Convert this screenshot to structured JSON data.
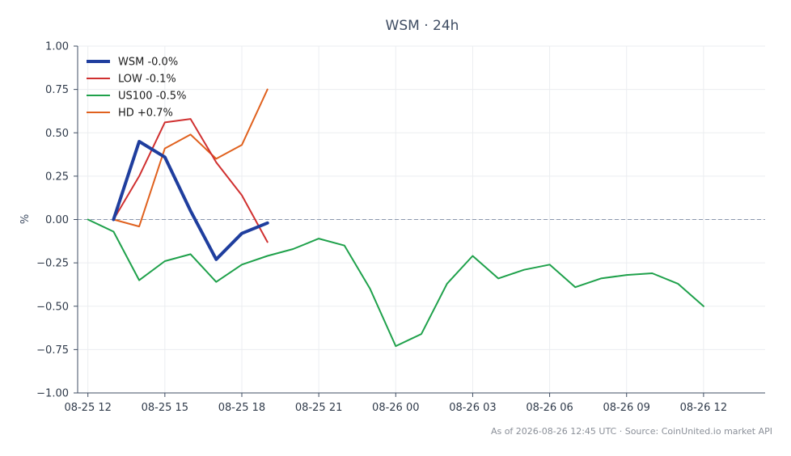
{
  "chart_data": {
    "type": "line",
    "title": "WSM · 24h",
    "ylabel": "%",
    "xlabel": "",
    "ylim": [
      -1.0,
      1.0
    ],
    "xlim": [
      -0.4,
      26.4
    ],
    "yticks": [
      1.0,
      0.75,
      0.5,
      0.25,
      0.0,
      -0.25,
      -0.5,
      -0.75,
      -1.0
    ],
    "ytick_labels": [
      "1.00",
      "0.75",
      "0.50",
      "0.25",
      "0.00",
      "−0.25",
      "−0.50",
      "−0.75",
      "−1.00"
    ],
    "xticks": [
      0,
      3,
      6,
      9,
      12,
      15,
      18,
      21,
      24
    ],
    "xtick_labels": [
      "08-25 12",
      "08-25 15",
      "08-25 18",
      "08-25 21",
      "08-26 00",
      "08-26 03",
      "08-26 06",
      "08-26 09",
      "08-26 12"
    ],
    "grid": true,
    "legend_position": "top-left",
    "zero_line": true,
    "series": [
      {
        "name": "WSM -0.0%",
        "color": "#1f3e9e",
        "x": [
          1,
          2,
          3,
          4,
          5,
          6,
          7
        ],
        "y": [
          0.0,
          0.45,
          0.36,
          0.05,
          -0.23,
          -0.08,
          -0.02
        ]
      },
      {
        "name": "LOW -0.1%",
        "color": "#d03030",
        "x": [
          1,
          2,
          3,
          4,
          5,
          6,
          7
        ],
        "y": [
          0.0,
          0.25,
          0.56,
          0.58,
          0.33,
          0.14,
          -0.13
        ]
      },
      {
        "name": "US100 -0.5%",
        "color": "#1fa14b",
        "x": [
          0,
          1,
          2,
          3,
          4,
          5,
          6,
          7,
          8,
          9,
          10,
          11,
          12,
          13,
          14,
          15,
          16,
          17,
          18,
          19,
          20,
          21,
          22,
          23,
          24
        ],
        "y": [
          0.0,
          -0.07,
          -0.35,
          -0.24,
          -0.2,
          -0.36,
          -0.26,
          -0.21,
          -0.17,
          -0.11,
          -0.15,
          -0.4,
          -0.73,
          -0.66,
          -0.37,
          -0.21,
          -0.34,
          -0.29,
          -0.26,
          -0.39,
          -0.34,
          -0.32,
          -0.31,
          -0.37,
          -0.5
        ]
      },
      {
        "name": "HD +0.7%",
        "color": "#e0611e",
        "x": [
          1,
          2,
          3,
          4,
          5,
          6,
          7
        ],
        "y": [
          0.0,
          -0.04,
          0.41,
          0.49,
          0.35,
          0.43,
          0.75
        ]
      }
    ]
  },
  "footer": "As of 2026-08-26 12:45 UTC · Source: CoinUnited.io market API"
}
